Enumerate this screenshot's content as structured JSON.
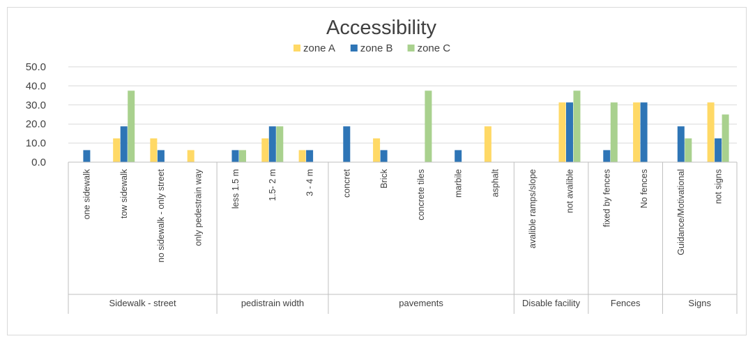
{
  "chart_data": {
    "type": "bar",
    "title": "Accessibility",
    "legend_position": "top",
    "grid": true,
    "ylim": [
      0,
      50
    ],
    "yticks": [
      "0.0",
      "10.0",
      "20.0",
      "30.0",
      "40.0",
      "50.0"
    ],
    "categories": [
      "one sidewalk",
      "tow sidewalk",
      "no sidewalk - only street",
      "only pedestrain way",
      "less 1.5 m",
      "1.5- 2 m",
      "3 - 4 m",
      "concret",
      "Brick",
      "concrete tiles",
      "marbile",
      "asphalt",
      "avalible ramps/slope",
      "not avalible",
      "fixed by fences",
      "No fences",
      "Guidance/Motivational",
      "not signs"
    ],
    "groups": [
      {
        "label": "Sidewalk - street",
        "count": 4
      },
      {
        "label": "pedistrain width",
        "count": 3
      },
      {
        "label": "pavements",
        "count": 5
      },
      {
        "label": "Disable facility",
        "count": 2
      },
      {
        "label": "Fences",
        "count": 2
      },
      {
        "label": "Signs",
        "count": 2
      }
    ],
    "series": [
      {
        "name": "zone A",
        "color": "#FFD966",
        "values": [
          0,
          12.5,
          12.5,
          6.3,
          0,
          12.5,
          6.3,
          0,
          12.5,
          0,
          0,
          18.8,
          0,
          31.3,
          0,
          31.3,
          0,
          31.3
        ]
      },
      {
        "name": "zone B",
        "color": "#2E75B6",
        "values": [
          6.3,
          18.8,
          6.3,
          0,
          6.3,
          18.8,
          6.3,
          18.8,
          6.3,
          0,
          6.3,
          0,
          0,
          31.3,
          6.3,
          31.3,
          18.8,
          12.5
        ]
      },
      {
        "name": "zone C",
        "color": "#A9D18E",
        "values": [
          0,
          37.5,
          0,
          0,
          6.3,
          18.8,
          0,
          0,
          0,
          37.5,
          0,
          0,
          0,
          37.5,
          31.3,
          0,
          12.5,
          25.0
        ]
      }
    ]
  }
}
